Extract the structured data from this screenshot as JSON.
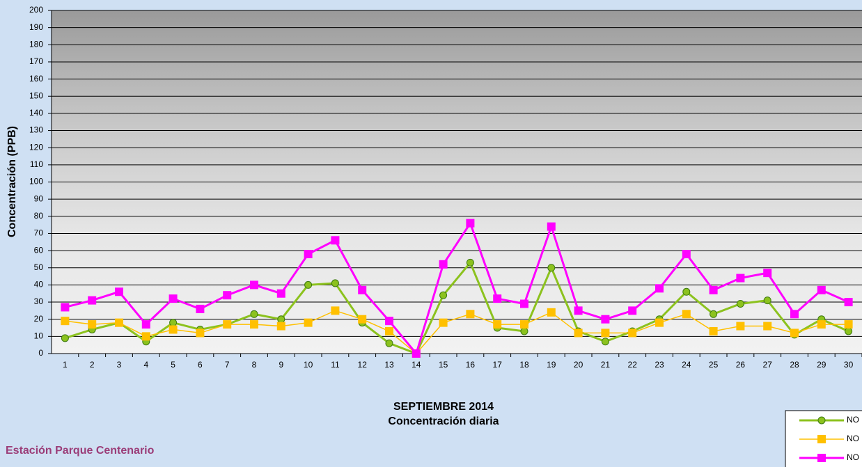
{
  "chart_data": {
    "type": "line",
    "title": "SEPTIEMBRE 2014",
    "subtitle": "Concentración diaria",
    "y_label": "Concentración  (PPB)",
    "footer": "Estación Parque Centenario",
    "categories": [
      "1",
      "2",
      "3",
      "4",
      "5",
      "6",
      "7",
      "8",
      "9",
      "10",
      "11",
      "12",
      "13",
      "14",
      "15",
      "16",
      "17",
      "18",
      "19",
      "20",
      "21",
      "22",
      "23",
      "24",
      "25",
      "26",
      "27",
      "28",
      "29",
      "30"
    ],
    "series": [
      {
        "name": "NO",
        "color": "#8cc21e",
        "marker": "circle",
        "values": [
          9,
          14,
          18,
          7,
          18,
          14,
          17,
          23,
          20,
          40,
          41,
          18,
          6,
          0,
          34,
          53,
          15,
          13,
          50,
          13,
          7,
          13,
          20,
          36,
          23,
          29,
          31,
          11,
          20,
          13
        ]
      },
      {
        "name": "NO",
        "color": "#ffc000",
        "marker": "square",
        "values": [
          19,
          17,
          18,
          10,
          14,
          12,
          17,
          17,
          16,
          18,
          25,
          20,
          13,
          0,
          18,
          23,
          17,
          17,
          24,
          12,
          12,
          12,
          18,
          23,
          13,
          16,
          16,
          12,
          17,
          17
        ]
      },
      {
        "name": "NO",
        "color": "#ff00ff",
        "marker": "square",
        "values": [
          27,
          31,
          36,
          17,
          32,
          26,
          34,
          40,
          35,
          58,
          66,
          37,
          19,
          0,
          52,
          76,
          32,
          29,
          74,
          25,
          20,
          25,
          38,
          58,
          37,
          44,
          47,
          23,
          37,
          30
        ]
      }
    ],
    "ylim": [
      0,
      200
    ],
    "yticks": [
      0,
      10,
      20,
      30,
      40,
      50,
      60,
      70,
      80,
      90,
      100,
      110,
      120,
      130,
      140,
      150,
      160,
      170,
      180,
      190,
      200
    ],
    "grid": true
  }
}
